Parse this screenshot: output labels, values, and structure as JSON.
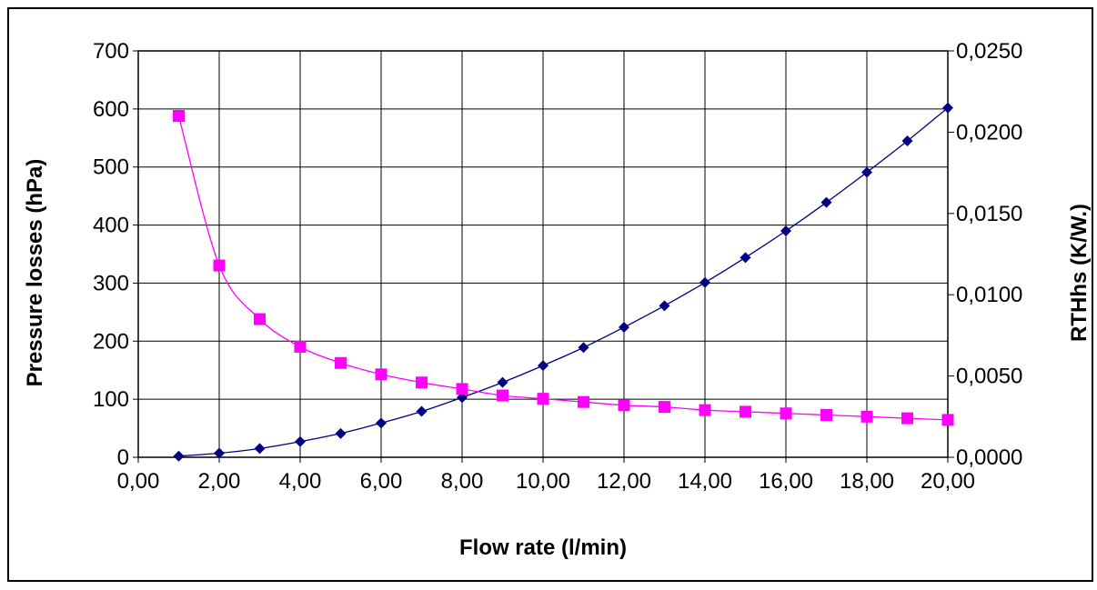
{
  "chart_data": {
    "type": "line",
    "title": "",
    "xlabel": "Flow rate (l/min)",
    "ylabel_left": "Pressure losses (hPa)",
    "ylabel_right": "RTHhs (K/W.)",
    "xlim": [
      0,
      20
    ],
    "ylim_left": [
      0,
      700
    ],
    "ylim_right": [
      0,
      0.025
    ],
    "grid": true,
    "legend": "none",
    "x_ticks": [
      0,
      2,
      4,
      6,
      8,
      10,
      12,
      14,
      16,
      18,
      20
    ],
    "x_tick_labels": [
      "0,00",
      "2,00",
      "4,00",
      "6,00",
      "8,00",
      "10,00",
      "12,00",
      "14,00",
      "16,00",
      "18,00",
      "20,00"
    ],
    "y_left_ticks": [
      0,
      100,
      200,
      300,
      400,
      500,
      600,
      700
    ],
    "y_left_tick_labels": [
      "0",
      "100",
      "200",
      "300",
      "400",
      "500",
      "600",
      "700"
    ],
    "y_right_ticks": [
      0,
      0.005,
      0.01,
      0.015,
      0.02,
      0.025
    ],
    "y_right_tick_labels": [
      "0,0000",
      "0,0050",
      "0,0100",
      "0,0150",
      "0,0200",
      "0,0250"
    ],
    "series": [
      {
        "axis": "left",
        "color": "#000080",
        "marker": "diamond",
        "x": [
          1,
          2,
          3,
          4,
          5,
          6,
          7,
          8,
          9,
          10,
          11,
          12,
          13,
          14,
          15,
          16,
          17,
          18,
          19,
          20
        ],
        "values": [
          2,
          7,
          15,
          27,
          41,
          59,
          79,
          103,
          129,
          158,
          189,
          224,
          261,
          301,
          344,
          390,
          439,
          491,
          545,
          602
        ]
      },
      {
        "axis": "right",
        "color": "#ff00ff",
        "marker": "square",
        "x": [
          1,
          2,
          3,
          4,
          5,
          6,
          7,
          8,
          9,
          10,
          11,
          12,
          13,
          14,
          15,
          16,
          17,
          18,
          19,
          20
        ],
        "values": [
          0.021,
          0.0118,
          0.0085,
          0.0068,
          0.0058,
          0.0051,
          0.0046,
          0.0042,
          0.0038,
          0.0036,
          0.0034,
          0.0032,
          0.0031,
          0.0029,
          0.0028,
          0.0027,
          0.0026,
          0.0025,
          0.0024,
          0.0023
        ]
      }
    ]
  }
}
